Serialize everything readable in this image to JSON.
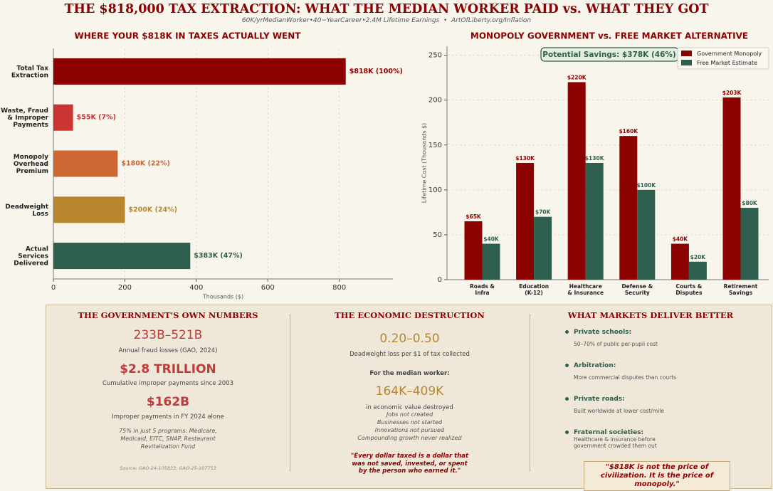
{
  "header": {
    "title": "THE $818,000 TAX EXTRACTION: WHAT THE MEDIAN WORKER PAID vs. WHAT THEY GOT",
    "subtitle": "60K/yrMedianWorker•40−YearCareer•2.4M Lifetime Earnings  •  ArtOfLiberty.org/Inflation"
  },
  "chart_data": [
    {
      "type": "hbar",
      "title": "WHERE YOUR $818K IN TAXES ACTUALLY WENT",
      "categories": [
        "Total Tax\nExtraction",
        "Waste, Fraud\n& Improper\nPayments",
        "Monopoly\nOverhead\nPremium",
        "Deadweight\nLoss",
        "Actual\nServices\nDelivered"
      ],
      "values": [
        818,
        55,
        180,
        200,
        383
      ],
      "value_labels": [
        "$818K (100%)",
        "$55K (7%)",
        "$180K (22%)",
        "$200K (24%)",
        "$383K (47%)"
      ],
      "colors": [
        "#8b0000",
        "#cc3333",
        "#cc6633",
        "#b8862f",
        "#2e5e4e"
      ],
      "xlim": [
        0,
        950
      ],
      "xticks": [
        0,
        200,
        400,
        600,
        800
      ],
      "xlabel": "Thousands ($)",
      "grid": true
    },
    {
      "type": "grouped_bar",
      "title": "MONOPOLY GOVERNMENT vs. FREE MARKET ALTERNATIVE",
      "categories": [
        "Roads &\nInfra",
        "Education\n(K-12)",
        "Healthcare\n& Insurance",
        "Defense &\nSecurity",
        "Courts &\nDisputes",
        "Retirement\nSavings"
      ],
      "series": [
        {
          "name": "Government Monopoly",
          "color": "#8b0000",
          "values": [
            65,
            130,
            220,
            160,
            40,
            203
          ],
          "value_labels": [
            "$65K",
            "$130K",
            "$220K",
            "$160K",
            "$40K",
            "$203K"
          ]
        },
        {
          "name": "Free Market Estimate",
          "color": "#2e5e4e",
          "values": [
            40,
            70,
            130,
            100,
            20,
            80
          ],
          "value_labels": [
            "$40K",
            "$70K",
            "$130K",
            "$100K",
            "$20K",
            "$80K"
          ]
        }
      ],
      "ylim": [
        0,
        260
      ],
      "yticks": [
        0,
        50,
        100,
        150,
        200,
        250
      ],
      "ylabel": "Lifetime Cost (Thousands $)",
      "annotation": "Potential Savings: $378K (46%)",
      "legend": "upper right",
      "grid": true
    }
  ],
  "panels": [
    {
      "title": "THE GOVERNMENT'S OWN NUMBERS",
      "stats": [
        {
          "value": "233B–521B",
          "label": "Annual fraud losses (GAO, 2024)"
        },
        {
          "value": "$2.8 TRILLION",
          "label": "Cumulative improper payments since 2003"
        },
        {
          "value": "$162B",
          "label": "Improper payments in FY 2024 alone"
        }
      ],
      "note": "75% in just 5 programs: Medicare, Medicaid, EITC, SNAP, Restaurant Revitalization Fund",
      "source": "Source: GAO-24-105833; GAO-25-107753"
    },
    {
      "title": "THE ECONOMIC DESTRUCTION",
      "stat1": "0.20–0.50",
      "stat1_label": "Deadweight loss per $1 of tax collected",
      "lead": "For the median worker:",
      "stat2": "164K–409K",
      "stat2_label": "in economic value destroyed",
      "items": [
        "Jobs not created",
        "Businesses not started",
        "Innovations not pursued",
        "Compounding growth never realized"
      ],
      "quote": "\"Every dollar taxed is a dollar that was not saved, invested, or spent by the person who earned it.\""
    },
    {
      "title": "WHAT MARKETS DELIVER BETTER",
      "items": [
        {
          "name": "Private schools:",
          "text": "50–70% of public per-pupil cost"
        },
        {
          "name": "Arbitration:",
          "text": "More commercial disputes than courts"
        },
        {
          "name": "Private roads:",
          "text": "Built worldwide at lower cost/mile"
        },
        {
          "name": "Fraternal societies:",
          "text": "Healthcare & insurance before government crowded them out"
        }
      ],
      "quote": "\"$818K is not the price of civilization. It is the price of monopoly.\""
    }
  ]
}
